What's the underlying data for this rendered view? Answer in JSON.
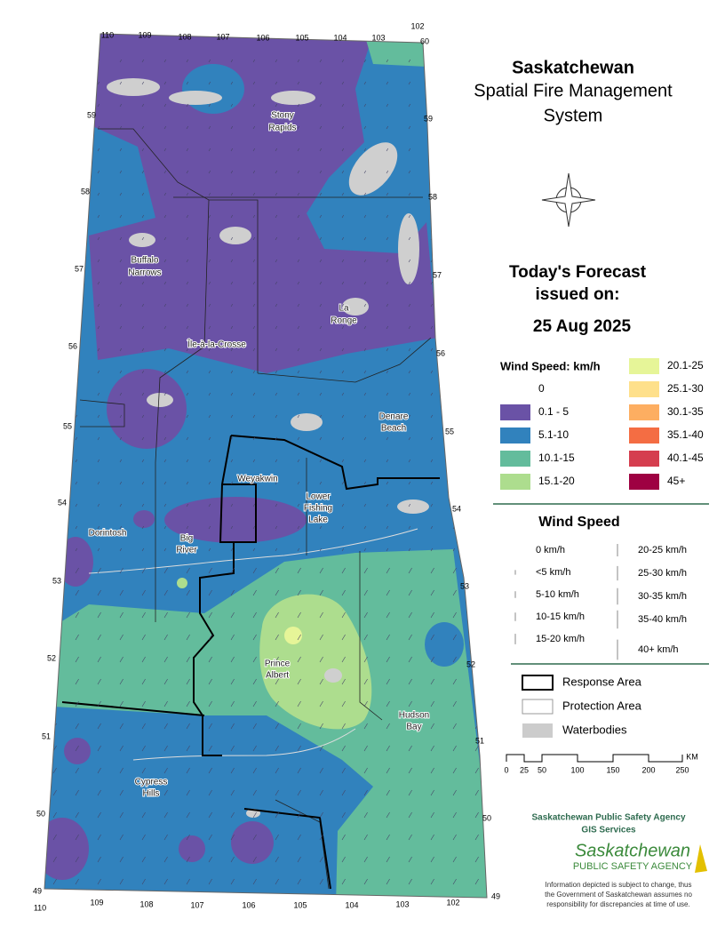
{
  "header": {
    "title": "Saskatchewan",
    "subtitle": [
      "Spatial Fire Management",
      "System"
    ]
  },
  "forecast": {
    "heading": [
      "Today's Forecast",
      "issued on:"
    ],
    "date": "25 Aug 2025"
  },
  "legend": {
    "title": "Wind Speed: km/h",
    "classes": [
      {
        "label": "0",
        "color": "#ffffff"
      },
      {
        "label": "0.1 - 5",
        "color": "#6a52a6"
      },
      {
        "label": "5.1-10",
        "color": "#3182bd"
      },
      {
        "label": "10.1-15",
        "color": "#63bc9c"
      },
      {
        "label": "15.1-20",
        "color": "#addd8e"
      },
      {
        "label": "20.1-25",
        "color": "#e6f598"
      },
      {
        "label": "25.1-30",
        "color": "#fee08b"
      },
      {
        "label": "30.1-35",
        "color": "#fdae61"
      },
      {
        "label": "35.1-40",
        "color": "#f46d43"
      },
      {
        "label": "40.1-45",
        "color": "#d53e4f"
      },
      {
        "label": "45+",
        "color": "#9e0142"
      }
    ]
  },
  "arrows": {
    "title": "Wind Speed",
    "items": [
      "0 km/h",
      "<5 km/h",
      "5-10 km/h",
      "10-15 km/h",
      "15-20 km/h",
      "20-25 km/h",
      "25-30 km/h",
      "30-35 km/h",
      "35-40 km/h",
      "40+ km/h"
    ]
  },
  "layers": [
    "Response Area",
    "Protection Area",
    "Waterbodies"
  ],
  "scale": {
    "unit": "KM",
    "ticks": [
      "0",
      "25",
      "50",
      "100",
      "150",
      "200",
      "250"
    ]
  },
  "agency": {
    "name": "Saskatchewan Public Safety Agency",
    "unit": "GIS  Services",
    "logo": [
      "Saskatchewan",
      "PUBLIC SAFETY AGENCY"
    ],
    "disclaimer": [
      "Information depicted is subject to change, thus",
      "the Government of Saskatchewan assumes no",
      "responsibility for discrepancies at time of use."
    ]
  },
  "places": [
    [
      "Stony",
      "Rapids"
    ],
    [
      "Buffalo",
      "Narrows"
    ],
    [
      "La",
      "Ronge"
    ],
    [
      "Île-à-la-Crosse"
    ],
    [
      "Denare",
      "Beach"
    ],
    [
      "Weyakwin"
    ],
    [
      "Lower",
      "Fishing",
      "Lake"
    ],
    [
      "Dorintosh"
    ],
    [
      "Big",
      "River"
    ],
    [
      "Prince",
      "Albert"
    ],
    [
      "Hudson",
      "Bay"
    ],
    [
      "Cypress",
      "Hills"
    ]
  ],
  "graticule": {
    "top": [
      "110",
      "109",
      "108",
      "107",
      "106",
      "105",
      "104",
      "103",
      "102",
      "60"
    ],
    "bottom": [
      "110",
      "109",
      "108",
      "107",
      "106",
      "105",
      "104",
      "103",
      "102",
      "49"
    ],
    "left": [
      "59",
      "58",
      "57",
      "56",
      "55",
      "54",
      "53",
      "52",
      "51",
      "50",
      "49"
    ],
    "right": [
      "59",
      "58",
      "57",
      "56",
      "55",
      "54",
      "53",
      "52",
      "51",
      "50"
    ]
  }
}
